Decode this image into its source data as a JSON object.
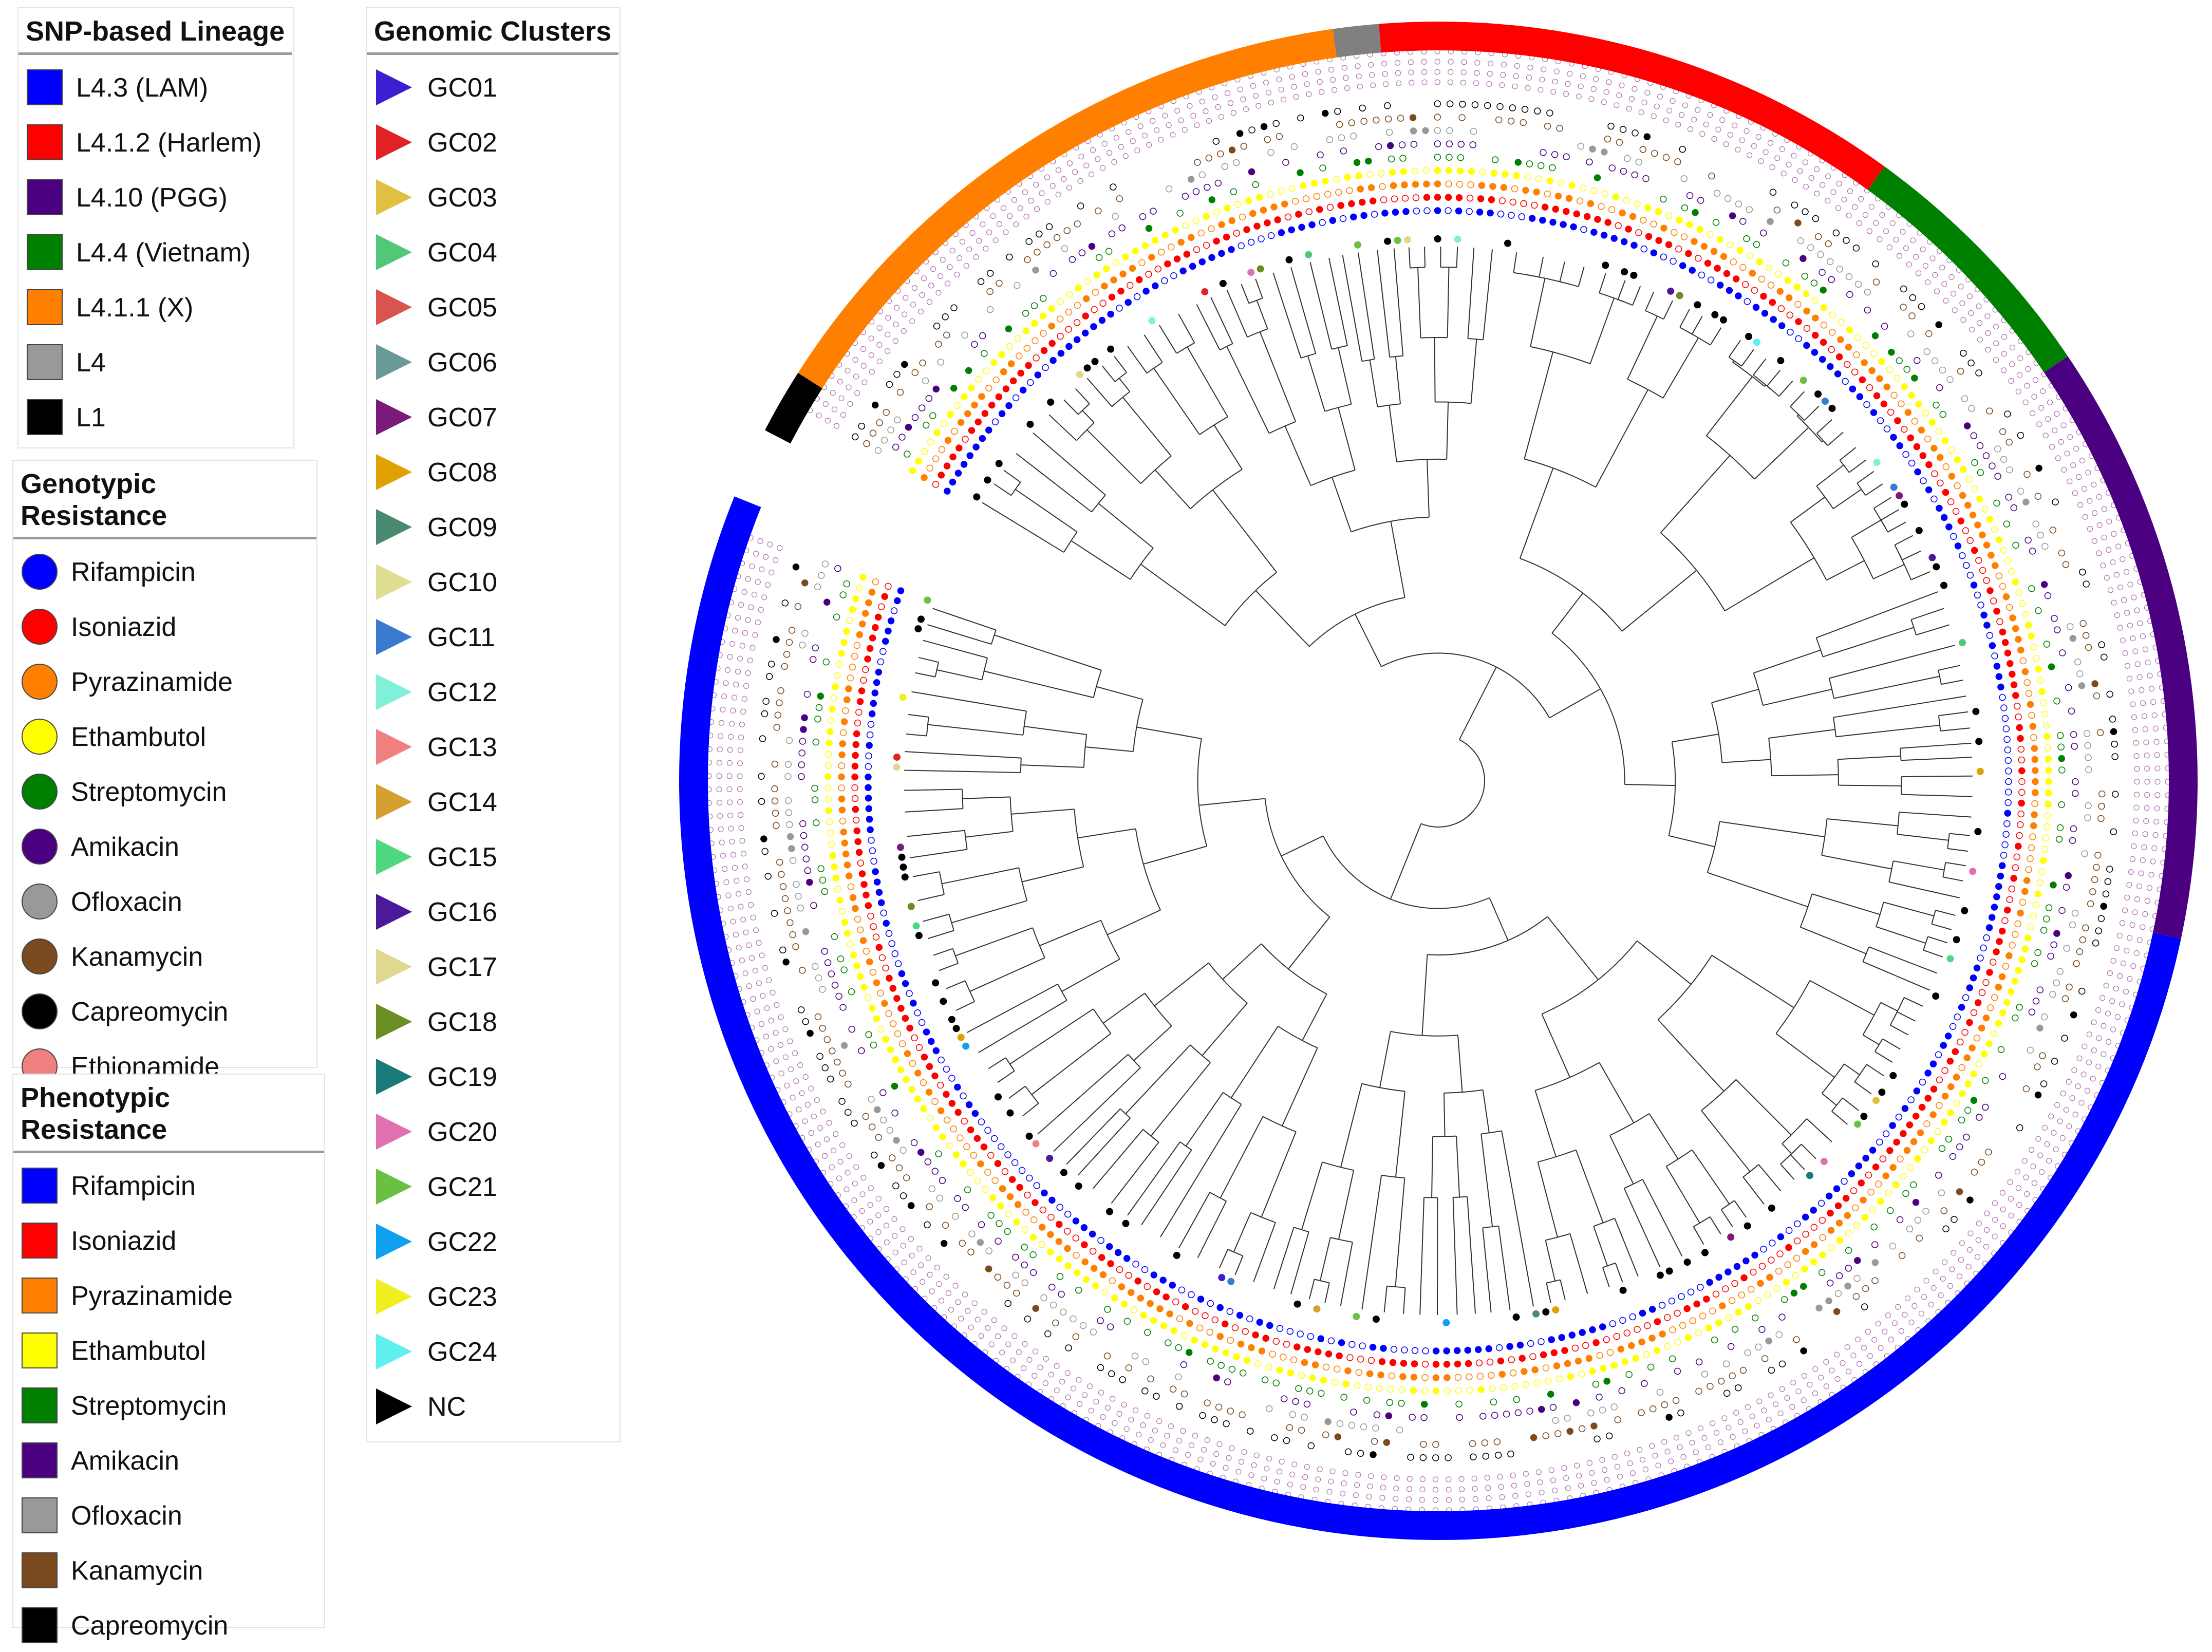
{
  "legends": {
    "lineage": {
      "title": "SNP-based Lineage",
      "items": [
        {
          "label": "L4.3 (LAM)",
          "color": "#0000ff"
        },
        {
          "label": "L4.1.2 (Harlem)",
          "color": "#ff0000"
        },
        {
          "label": "L4.10 (PGG)",
          "color": "#4b0082"
        },
        {
          "label": "L4.4 (Vietnam)",
          "color": "#008000"
        },
        {
          "label": "L4.1.1 (X)",
          "color": "#ff8000"
        },
        {
          "label": "L4",
          "color": "#999999"
        },
        {
          "label": "L1",
          "color": "#000000"
        }
      ]
    },
    "genotypic": {
      "title": "Genotypic Resistance",
      "items": [
        {
          "label": "Rifampicin",
          "color": "#0000ff"
        },
        {
          "label": "Isoniazid",
          "color": "#ff0000"
        },
        {
          "label": "Pyrazinamide",
          "color": "#ff8000"
        },
        {
          "label": "Ethambutol",
          "color": "#ffff00"
        },
        {
          "label": "Streptomycin",
          "color": "#008000"
        },
        {
          "label": "Amikacin",
          "color": "#4b0082"
        },
        {
          "label": "Ofloxacin",
          "color": "#999999"
        },
        {
          "label": "Kanamycin",
          "color": "#7b4a1e"
        },
        {
          "label": "Capreomycin",
          "color": "#000000"
        },
        {
          "label": "Ethionamide",
          "color": "#f08080"
        }
      ]
    },
    "phenotypic": {
      "title": "Phenotypic Resistance",
      "items": [
        {
          "label": "Rifampicin",
          "color": "#0000ff"
        },
        {
          "label": "Isoniazid",
          "color": "#ff0000"
        },
        {
          "label": "Pyrazinamide",
          "color": "#ff8000"
        },
        {
          "label": "Ethambutol",
          "color": "#ffff00"
        },
        {
          "label": "Streptomycin",
          "color": "#008000"
        },
        {
          "label": "Amikacin",
          "color": "#4b0082"
        },
        {
          "label": "Ofloxacin",
          "color": "#999999"
        },
        {
          "label": "Kanamycin",
          "color": "#7b4a1e"
        },
        {
          "label": "Capreomycin",
          "color": "#000000"
        }
      ]
    },
    "clusters": {
      "title": "Genomic Clusters",
      "items": [
        {
          "label": "GC01",
          "color": "#3b1fd1"
        },
        {
          "label": "GC02",
          "color": "#e02222"
        },
        {
          "label": "GC03",
          "color": "#e0c040"
        },
        {
          "label": "GC04",
          "color": "#50c878"
        },
        {
          "label": "GC05",
          "color": "#d9534f"
        },
        {
          "label": "GC06",
          "color": "#6a9a98"
        },
        {
          "label": "GC07",
          "color": "#7a1a7a"
        },
        {
          "label": "GC08",
          "color": "#e0a000"
        },
        {
          "label": "GC09",
          "color": "#4a8a70"
        },
        {
          "label": "GC10",
          "color": "#dede90"
        },
        {
          "label": "GC11",
          "color": "#3a7ad0"
        },
        {
          "label": "GC12",
          "color": "#80f0d8"
        },
        {
          "label": "GC13",
          "color": "#f08080"
        },
        {
          "label": "GC14",
          "color": "#d4a030"
        },
        {
          "label": "GC15",
          "color": "#50d880"
        },
        {
          "label": "GC16",
          "color": "#4a1a9a"
        },
        {
          "label": "GC17",
          "color": "#e0d890"
        },
        {
          "label": "GC18",
          "color": "#6b8e23"
        },
        {
          "label": "GC19",
          "color": "#1a7a7a"
        },
        {
          "label": "GC20",
          "color": "#e070b0"
        },
        {
          "label": "GC21",
          "color": "#6ac040"
        },
        {
          "label": "GC22",
          "color": "#10a0f0"
        },
        {
          "label": "GC23",
          "color": "#f0f020"
        },
        {
          "label": "GC24",
          "color": "#60f0f0"
        },
        {
          "label": "NC",
          "color": "#000000"
        }
      ]
    }
  },
  "tree": {
    "lineage_ring": [
      {
        "lineage": "L1",
        "from_deg": 297.5,
        "to_deg": 302.5,
        "color": "#000000"
      },
      {
        "lineage": "L4.1.1 (X)",
        "from_deg": 302.5,
        "to_deg": 352.0,
        "color": "#ff8000"
      },
      {
        "lineage": "L4",
        "from_deg": 352.0,
        "to_deg": 355.5,
        "color": "#808080"
      },
      {
        "lineage": "L4.1.2 (Harlem)",
        "from_deg": 355.5,
        "to_deg": 396.0,
        "color": "#ff0000"
      },
      {
        "lineage": "L4.4 (Vietnam)",
        "from_deg": 396.0,
        "to_deg": 416.0,
        "color": "#008000"
      },
      {
        "lineage": "L4.10 (PGG)",
        "from_deg": 416.0,
        "to_deg": 462.0,
        "color": "#4b0082"
      },
      {
        "lineage": "L4.3 (LAM)",
        "from_deg": 462.0,
        "to_deg": 652.0,
        "color": "#0000ff"
      }
    ]
  }
}
